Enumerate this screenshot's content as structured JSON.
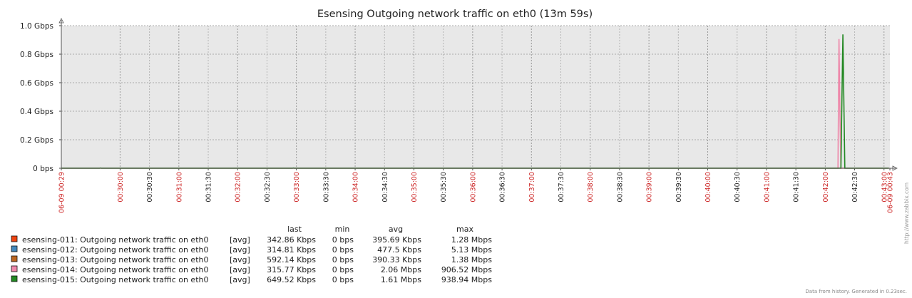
{
  "chart_data": {
    "type": "line",
    "title": "Esensing Outgoing network traffic on eth0 (13m 59s)",
    "y_ticks": [
      "0 bps",
      "0.2 Gbps",
      "0.4 Gbps",
      "0.6 Gbps",
      "0.8 Gbps",
      "1.0 Gbps"
    ],
    "ylim": [
      0,
      1.0
    ],
    "y_unit": "Gbps",
    "grid": true,
    "x_ticks": [
      {
        "label": "06-09 00:29",
        "seconds": 0,
        "emphasis": "boundary"
      },
      {
        "label": "00:30:00",
        "seconds": 60,
        "emphasis": "major"
      },
      {
        "label": "00:30:30",
        "seconds": 90,
        "emphasis": "minor"
      },
      {
        "label": "00:31:00",
        "seconds": 120,
        "emphasis": "major"
      },
      {
        "label": "00:31:30",
        "seconds": 150,
        "emphasis": "minor"
      },
      {
        "label": "00:32:00",
        "seconds": 180,
        "emphasis": "major"
      },
      {
        "label": "00:32:30",
        "seconds": 210,
        "emphasis": "minor"
      },
      {
        "label": "00:33:00",
        "seconds": 240,
        "emphasis": "major"
      },
      {
        "label": "00:33:30",
        "seconds": 270,
        "emphasis": "minor"
      },
      {
        "label": "00:34:00",
        "seconds": 300,
        "emphasis": "major"
      },
      {
        "label": "00:34:30",
        "seconds": 330,
        "emphasis": "minor"
      },
      {
        "label": "00:35:00",
        "seconds": 360,
        "emphasis": "major"
      },
      {
        "label": "00:35:30",
        "seconds": 390,
        "emphasis": "minor"
      },
      {
        "label": "00:36:00",
        "seconds": 420,
        "emphasis": "major"
      },
      {
        "label": "00:36:30",
        "seconds": 450,
        "emphasis": "minor"
      },
      {
        "label": "00:37:00",
        "seconds": 480,
        "emphasis": "major"
      },
      {
        "label": "00:37:30",
        "seconds": 510,
        "emphasis": "minor"
      },
      {
        "label": "00:38:00",
        "seconds": 540,
        "emphasis": "major"
      },
      {
        "label": "00:38:30",
        "seconds": 570,
        "emphasis": "minor"
      },
      {
        "label": "00:39:00",
        "seconds": 600,
        "emphasis": "major"
      },
      {
        "label": "00:39:30",
        "seconds": 630,
        "emphasis": "minor"
      },
      {
        "label": "00:40:00",
        "seconds": 660,
        "emphasis": "major"
      },
      {
        "label": "00:40:30",
        "seconds": 690,
        "emphasis": "minor"
      },
      {
        "label": "00:41:00",
        "seconds": 720,
        "emphasis": "major"
      },
      {
        "label": "00:41:30",
        "seconds": 750,
        "emphasis": "minor"
      },
      {
        "label": "00:42:00",
        "seconds": 780,
        "emphasis": "major"
      },
      {
        "label": "00:42:30",
        "seconds": 810,
        "emphasis": "minor"
      },
      {
        "label": "00:43:00",
        "seconds": 840,
        "emphasis": "major"
      },
      {
        "label": "06-09 00:43",
        "seconds": 846,
        "emphasis": "boundary"
      }
    ],
    "x_range_seconds": [
      0,
      846
    ],
    "legend_headers": [
      "last",
      "min",
      "avg",
      "max"
    ],
    "series": [
      {
        "name": "esensing-011: Outgoing network traffic on eth0",
        "color": "#EE4411",
        "func": "[avg]",
        "last": "342.86 Kbps",
        "min": "0 bps",
        "avg": "395.69 Kbps",
        "max": "1.28 Mbps",
        "points": [
          [
            0,
            0.0003
          ],
          [
            845,
            0.0003
          ]
        ]
      },
      {
        "name": "esensing-012: Outgoing network traffic on eth0",
        "color": "#4488BB",
        "func": "[avg]",
        "last": "314.81 Kbps",
        "min": "0 bps",
        "avg": "477.5 Kbps",
        "max": "5.13 Mbps",
        "points": [
          [
            0,
            0.0003
          ],
          [
            845,
            0.0003
          ]
        ]
      },
      {
        "name": "esensing-013: Outgoing network traffic on eth0",
        "color": "#BB6622",
        "func": "[avg]",
        "last": "592.14 Kbps",
        "min": "0 bps",
        "avg": "390.33 Kbps",
        "max": "1.38 Mbps",
        "points": [
          [
            0,
            0.0006
          ],
          [
            845,
            0.0006
          ]
        ]
      },
      {
        "name": "esensing-014: Outgoing network traffic on eth0",
        "color": "#EE88AA",
        "func": "[avg]",
        "last": "315.77 Kbps",
        "min": "0 bps",
        "avg": "2.06 Mbps",
        "max": "906.52 Mbps",
        "points": [
          [
            0,
            0.0003
          ],
          [
            793,
            0.0003
          ],
          [
            794,
            0.9065
          ],
          [
            795,
            0.36
          ],
          [
            796,
            0.0003
          ],
          [
            845,
            0.0003
          ]
        ]
      },
      {
        "name": "esensing-015: Outgoing network traffic on eth0",
        "color": "#228822",
        "func": "[avg]",
        "last": "649.52 Kbps",
        "min": "0 bps",
        "avg": "1.61 Mbps",
        "max": "938.94 Mbps",
        "points": [
          [
            0,
            0.0006
          ],
          [
            39,
            0.0006
          ],
          [
            40,
            0.0015
          ],
          [
            41,
            0.0006
          ],
          [
            236,
            0.0006
          ],
          [
            237,
            0.0015
          ],
          [
            238,
            0.0006
          ],
          [
            357,
            0.0006
          ],
          [
            358,
            0.0015
          ],
          [
            359,
            0.0006
          ],
          [
            796,
            0.0006
          ],
          [
            797,
            0.48
          ],
          [
            798,
            0.9389
          ],
          [
            799,
            0.48
          ],
          [
            800,
            0.0006
          ],
          [
            845,
            0.0006
          ]
        ]
      }
    ]
  },
  "watermark": "http://www.zabbix.com",
  "footer": "Data from history. Generated in 0.23sec.",
  "colors": {
    "plot_background": "#E8E8E8",
    "major_tick_label": "#CC2222",
    "minor_tick_label": "#222222",
    "grid": "#AAAAAA"
  }
}
